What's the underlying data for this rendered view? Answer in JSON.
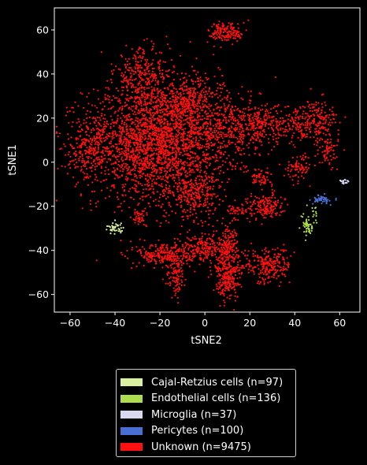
{
  "chart_data": {
    "type": "scatter",
    "xlabel": "tSNE2",
    "ylabel": "tSNE1",
    "xlim": [
      -67,
      69
    ],
    "ylim": [
      -68,
      70
    ],
    "xticks": [
      -60,
      -40,
      -20,
      0,
      20,
      40,
      60
    ],
    "yticks": [
      -60,
      -40,
      -20,
      0,
      20,
      40,
      60
    ],
    "grid": false,
    "legend_position": "bottom",
    "series": [
      {
        "name": "Cajal-Retzius cells (n=97)",
        "color": "#d9f0a3",
        "clusters": [
          {
            "cx": -40,
            "cy": -30,
            "sx": 2,
            "sy": 1.3,
            "n": 40
          }
        ]
      },
      {
        "name": "Endothelial cells (n=136)",
        "color": "#addd4e",
        "clusters": [
          {
            "cx": 46,
            "cy": -29,
            "sx": 1.3,
            "sy": 2.5,
            "n": 50
          },
          {
            "cx": 49,
            "cy": -23,
            "sx": 0.6,
            "sy": 2,
            "n": 12
          }
        ]
      },
      {
        "name": "Microglia (n=37)",
        "color": "#d8d8f0",
        "clusters": [
          {
            "cx": 62,
            "cy": -9,
            "sx": 1.2,
            "sy": 0.6,
            "n": 20
          }
        ]
      },
      {
        "name": "Pericytes (n=100)",
        "color": "#4a6fd4",
        "clusters": [
          {
            "cx": 52,
            "cy": -17,
            "sx": 2,
            "sy": 1,
            "n": 50
          }
        ]
      },
      {
        "name": "Unknown (n=9475)",
        "color": "#ff1010",
        "clusters": [
          {
            "cx": -28,
            "cy": 10,
            "sx": 13,
            "sy": 13,
            "n": 1500
          },
          {
            "cx": -12,
            "cy": 8,
            "sx": 12,
            "sy": 14,
            "n": 900
          },
          {
            "cx": -8,
            "cy": 28,
            "sx": 8,
            "sy": 6,
            "n": 300
          },
          {
            "cx": -28,
            "cy": 40,
            "sx": 6,
            "sy": 6,
            "n": 250
          },
          {
            "cx": -52,
            "cy": 5,
            "sx": 5,
            "sy": 7,
            "n": 200
          },
          {
            "cx": -5,
            "cy": -15,
            "sx": 5,
            "sy": 5,
            "n": 250
          },
          {
            "cx": 8,
            "cy": 15,
            "sx": 8,
            "sy": 10,
            "n": 350
          },
          {
            "cx": 25,
            "cy": 17,
            "sx": 8,
            "sy": 4,
            "n": 300
          },
          {
            "cx": 48,
            "cy": 18,
            "sx": 6,
            "sy": 5,
            "n": 250
          },
          {
            "cx": 42,
            "cy": -2,
            "sx": 3,
            "sy": 3,
            "n": 80
          },
          {
            "cx": 55,
            "cy": 5,
            "sx": 2,
            "sy": 3,
            "n": 60
          },
          {
            "cx": 25,
            "cy": -7,
            "sx": 2.5,
            "sy": 2,
            "n": 60
          },
          {
            "cx": 27,
            "cy": -20,
            "sx": 4,
            "sy": 3,
            "n": 160
          },
          {
            "cx": 15,
            "cy": -22,
            "sx": 2.5,
            "sy": 1.5,
            "n": 40
          },
          {
            "cx": -18,
            "cy": -42,
            "sx": 6,
            "sy": 3,
            "n": 250
          },
          {
            "cx": -13,
            "cy": -52,
            "sx": 2,
            "sy": 5,
            "n": 100
          },
          {
            "cx": -1,
            "cy": -39,
            "sx": 5,
            "sy": 3,
            "n": 200
          },
          {
            "cx": 10,
            "cy": -40,
            "sx": 3,
            "sy": 6,
            "n": 220
          },
          {
            "cx": 10,
            "cy": -54,
            "sx": 3,
            "sy": 4,
            "n": 180
          },
          {
            "cx": 28,
            "cy": -47,
            "sx": 5,
            "sy": 4,
            "n": 230
          },
          {
            "cx": 10,
            "cy": 59,
            "sx": 4,
            "sy": 2.5,
            "n": 150
          },
          {
            "cx": -29,
            "cy": -25,
            "sx": 2,
            "sy": 2,
            "n": 40
          }
        ]
      }
    ]
  }
}
